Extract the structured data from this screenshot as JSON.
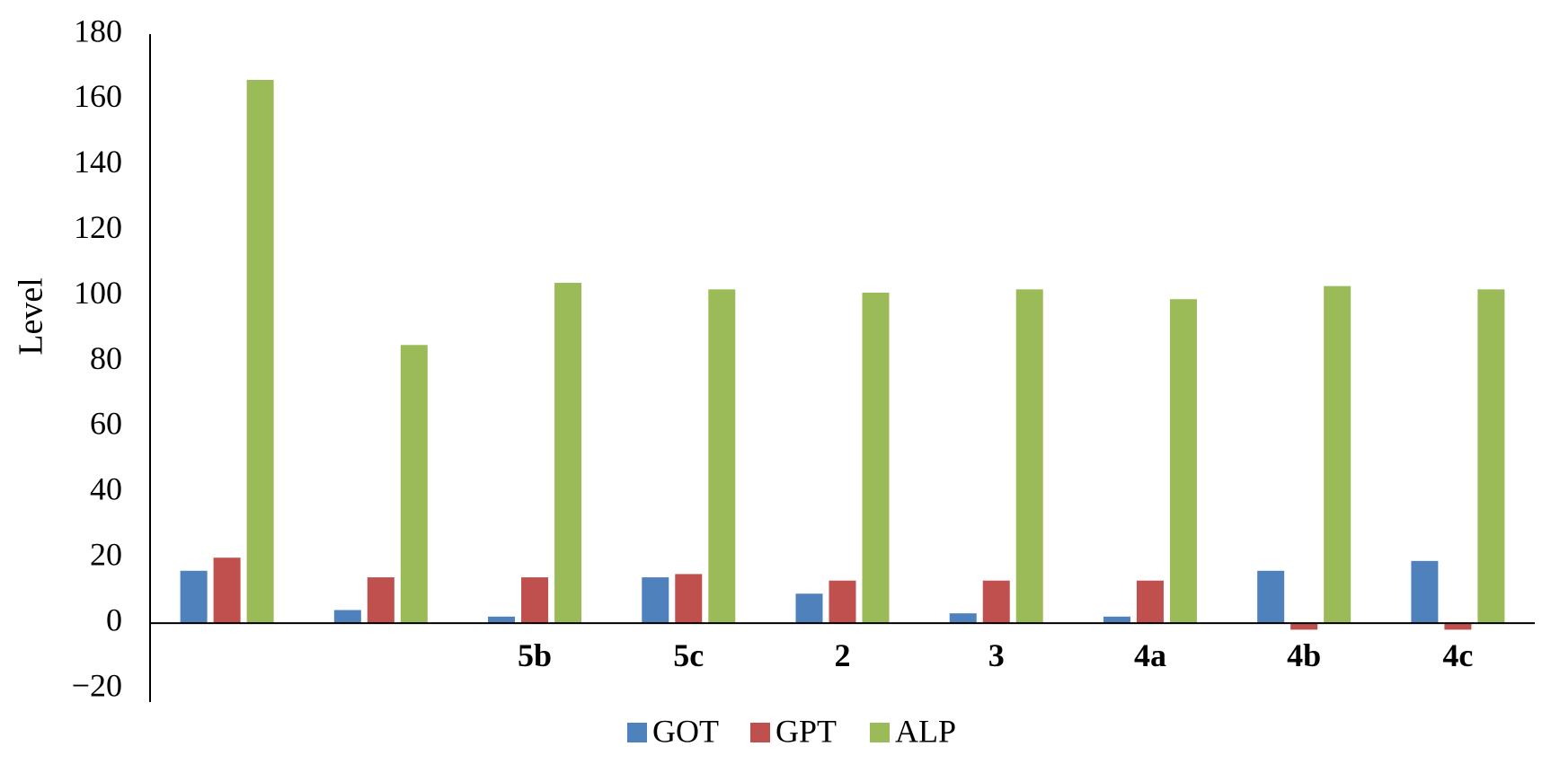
{
  "chart_data": {
    "type": "bar",
    "categories": [
      "",
      "",
      "5b",
      "5c",
      "2",
      "3",
      "4a",
      "4b",
      "4c"
    ],
    "series": [
      {
        "name": "GOT",
        "color": "#4f81bd",
        "values": [
          16,
          4,
          2,
          14,
          9,
          3,
          2,
          16,
          19
        ]
      },
      {
        "name": "GPT",
        "color": "#c0504d",
        "values": [
          20,
          14,
          14,
          15,
          13,
          13,
          13,
          -2,
          -2
        ]
      },
      {
        "name": "ALP",
        "color": "#9bbb59",
        "values": [
          166,
          85,
          104,
          102,
          101,
          102,
          99,
          103,
          102
        ]
      }
    ],
    "title": "",
    "xlabel": "",
    "ylabel": "Level",
    "ylim": [
      -20,
      180
    ],
    "yticks": [
      -20,
      0,
      20,
      40,
      60,
      80,
      100,
      120,
      140,
      160,
      180
    ],
    "grid": false,
    "legend": "bottom-center"
  }
}
